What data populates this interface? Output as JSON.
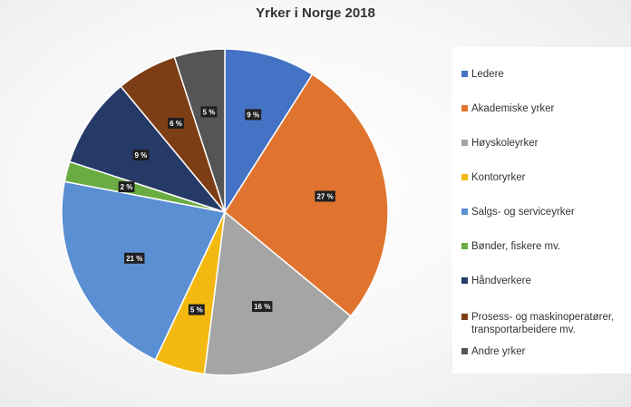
{
  "chart_data": {
    "type": "pie",
    "title": "Yrker i Norge 2018",
    "categories": [
      "Ledere",
      "Akademiske yrker",
      "Høyskoleyrker",
      "Kontoryrker",
      "Salgs- og serviceyrker",
      "Bønder, fiskere mv.",
      "Håndverkere",
      "Prosess- og maskinoperatører, transportarbeidere mv.",
      "Andre yrker"
    ],
    "values": [
      9,
      27,
      16,
      5,
      21,
      2,
      9,
      6,
      5
    ],
    "data_labels": [
      "9 %",
      "27 %",
      "16 %",
      "5 %",
      "21 %",
      "2 %",
      "9 %",
      "6 %",
      "5 %"
    ],
    "colors": [
      "#4472C4",
      "#E0742F",
      "#A5A5A5",
      "#F4B910",
      "#5B8FD3",
      "#6AAC43",
      "#263A68",
      "#7E3E15",
      "#555555"
    ],
    "legend_position": "right"
  },
  "legend": {
    "items": [
      {
        "label": "Ledere",
        "color": "#4472C4"
      },
      {
        "label": "Akademiske yrker",
        "color": "#E0742F"
      },
      {
        "label": "Høyskoleyrker",
        "color": "#A5A5A5"
      },
      {
        "label": "Kontoryrker",
        "color": "#F4B910"
      },
      {
        "label": "Salgs- og serviceyrker",
        "color": "#5B8FD3"
      },
      {
        "label": "Bønder, fiskere mv.",
        "color": "#6AAC43"
      },
      {
        "label": "Håndverkere",
        "color": "#263A68"
      },
      {
        "label": "Prosess- og maskinoperatører, transportarbeidere mv.",
        "color": "#7E3E15"
      },
      {
        "label": "Andre yrker",
        "color": "#555555"
      }
    ]
  }
}
